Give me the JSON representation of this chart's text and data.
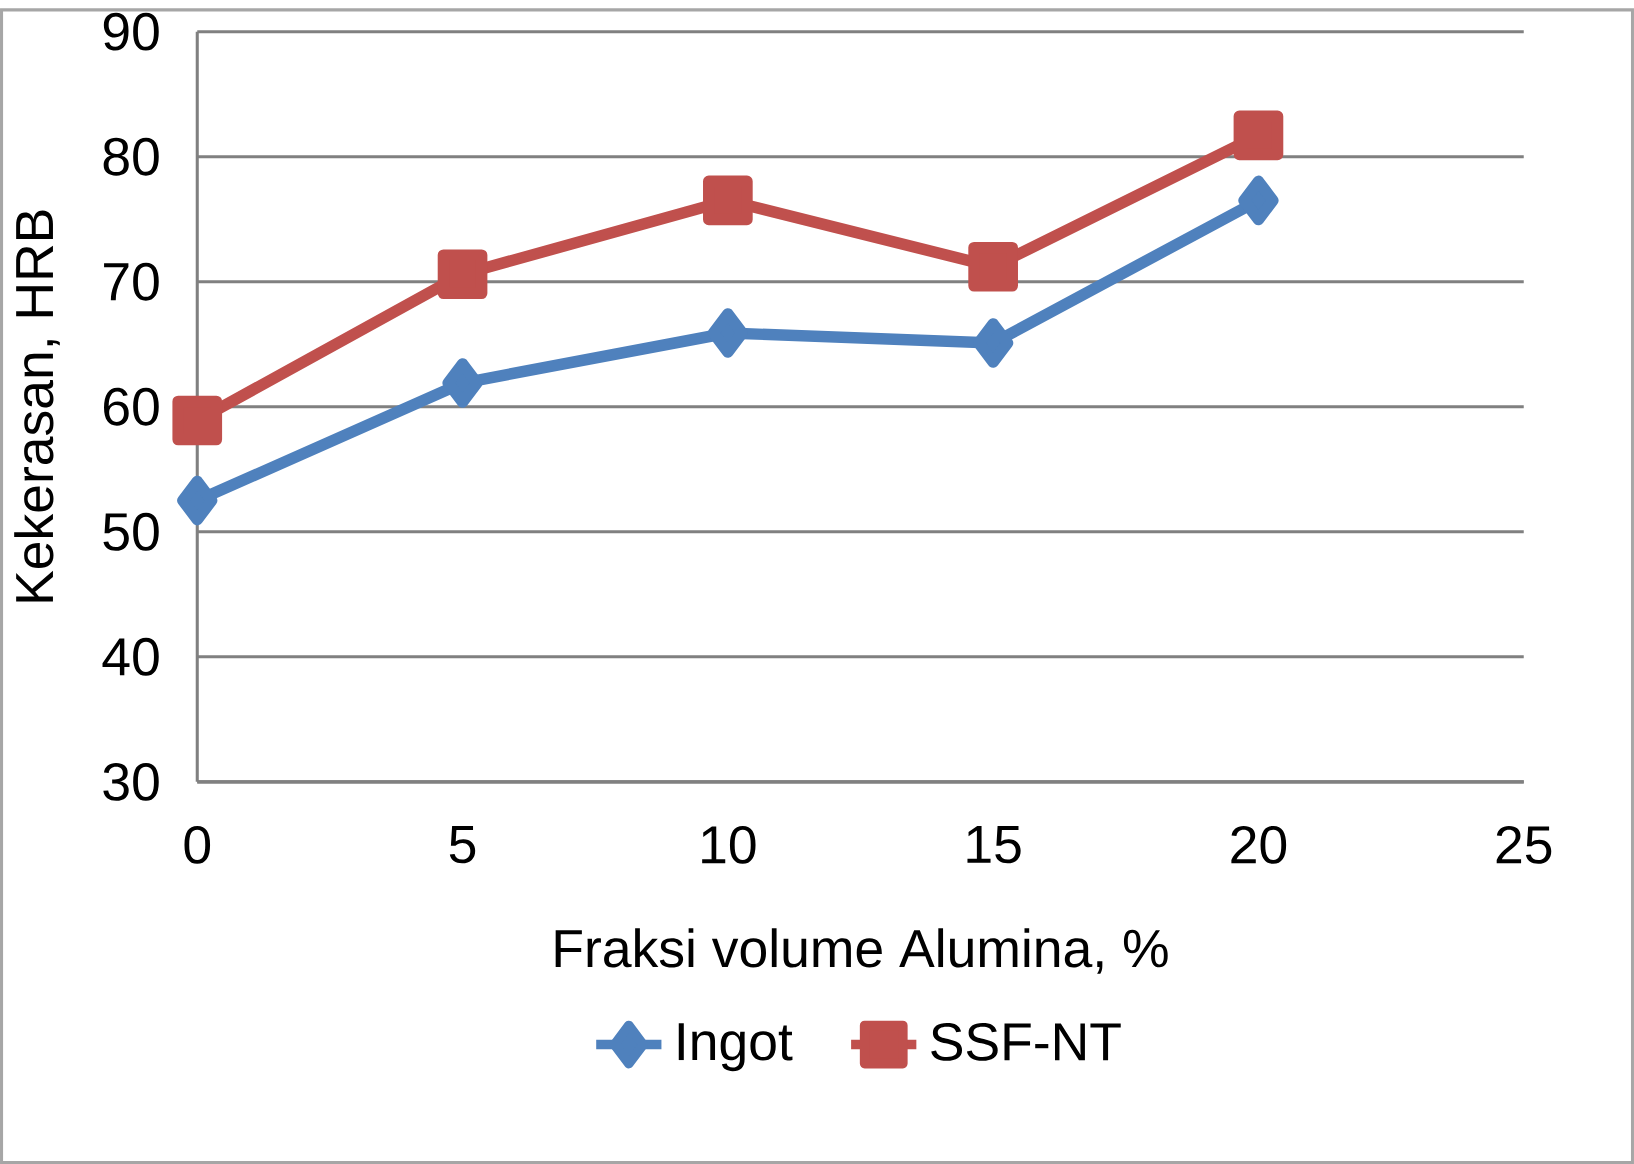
{
  "chart_data": {
    "type": "line",
    "xlabel": "Fraksi volume Alumina, %",
    "ylabel": "Kekerasan, HRB",
    "x": [
      0,
      5,
      10,
      15,
      20
    ],
    "series": [
      {
        "name": "Ingot",
        "color": "#4f81bd",
        "marker": "diamond",
        "values": [
          52.5,
          61.9,
          65.9,
          65.1,
          76.5
        ]
      },
      {
        "name": "SSF-NT",
        "color": "#c0504d",
        "marker": "square",
        "values": [
          58.9,
          70.6,
          76.5,
          71.2,
          81.7
        ]
      }
    ],
    "xlim": [
      0,
      25
    ],
    "xticks": [
      0,
      5,
      10,
      15,
      20,
      25
    ],
    "ylim": [
      30,
      90
    ],
    "yticks": [
      30,
      40,
      50,
      60,
      70,
      80,
      90
    ],
    "grid": "y",
    "legend": "bottom",
    "line_style": "solid"
  }
}
